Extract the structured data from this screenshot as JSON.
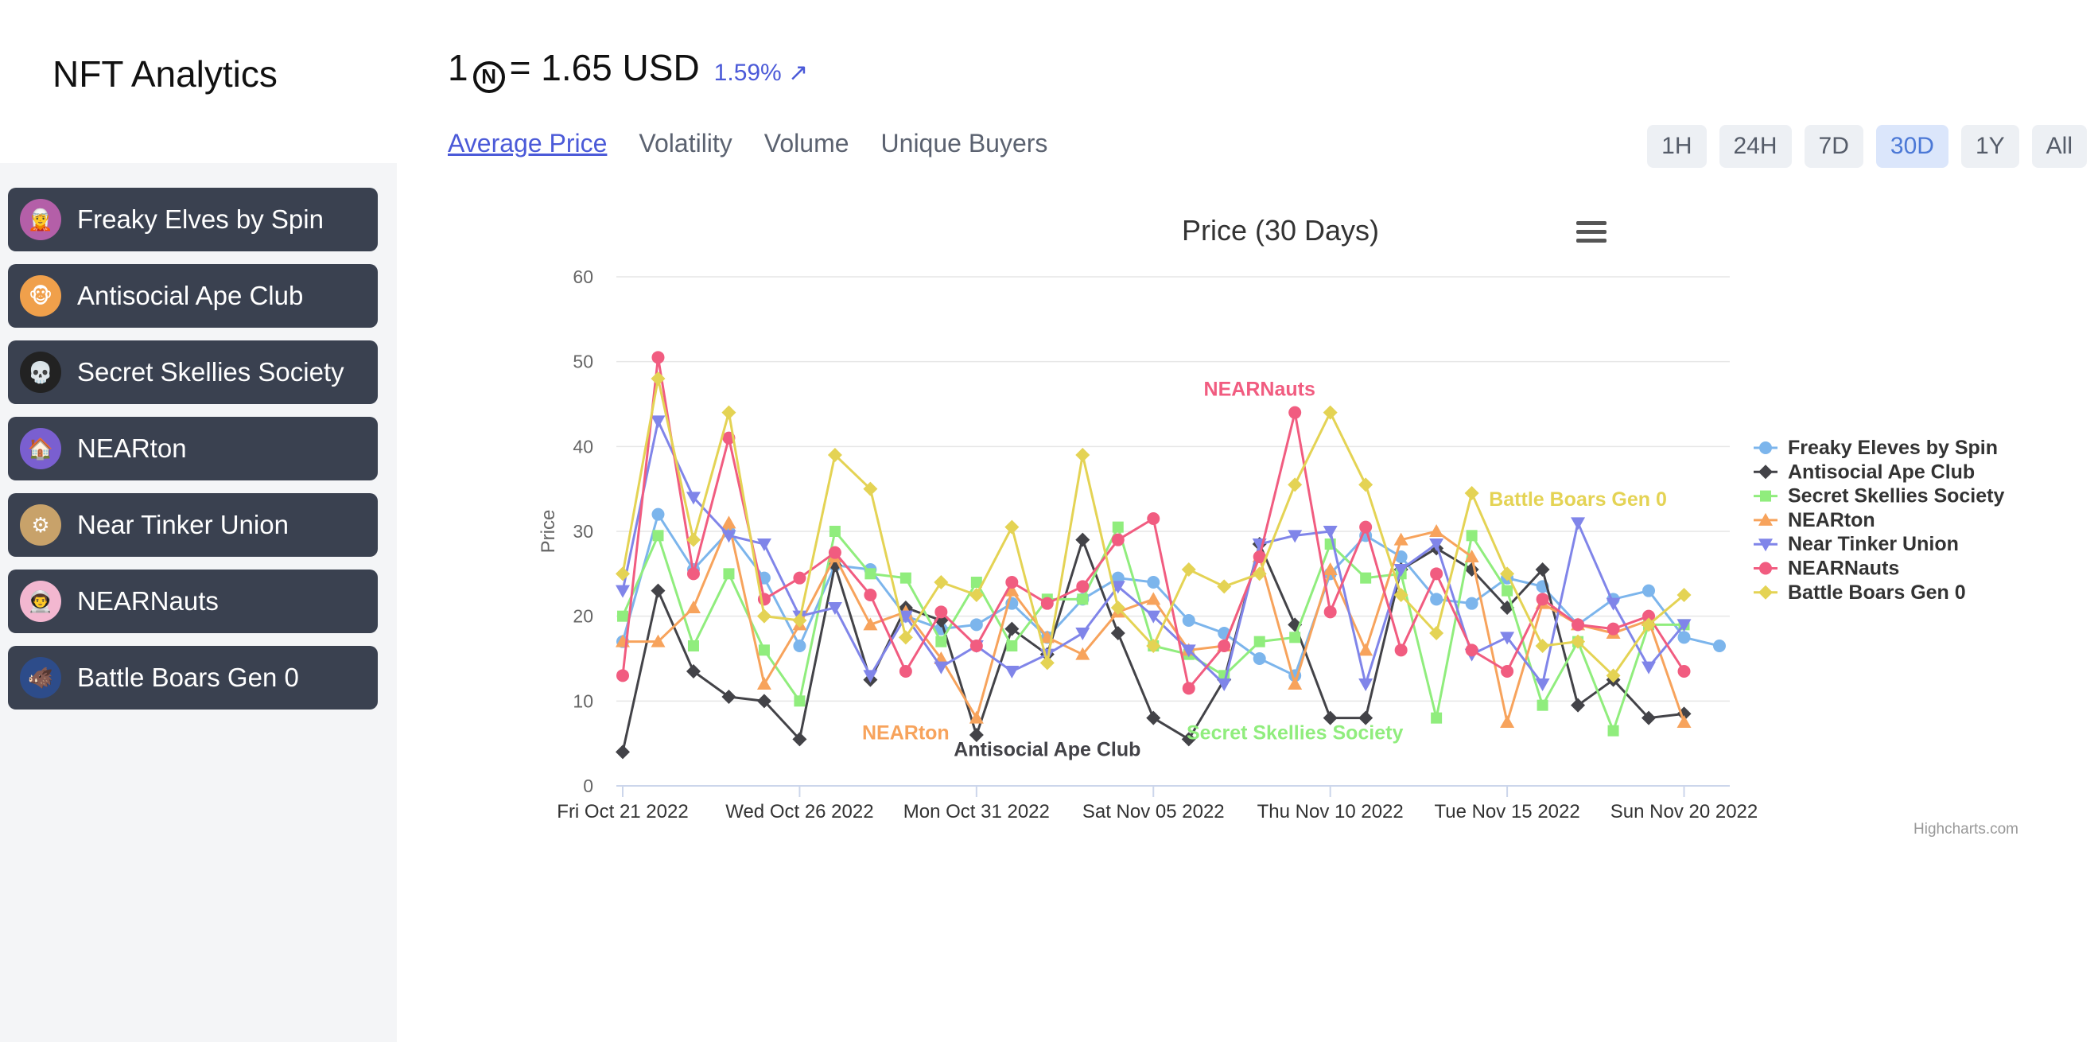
{
  "brand": "NFT Analytics",
  "sidebar": {
    "items": [
      {
        "label": "Freaky Elves by Spin",
        "icon": "elf-avatar-icon",
        "bg": "#b45fa8",
        "glyph": "🧝"
      },
      {
        "label": "Antisocial Ape Club",
        "icon": "ape-avatar-icon",
        "bg": "#f0a04b",
        "glyph": "🐵"
      },
      {
        "label": "Secret Skellies Society",
        "icon": "skull-avatar-icon",
        "bg": "#222222",
        "glyph": "💀"
      },
      {
        "label": "NEARton",
        "icon": "nearton-avatar-icon",
        "bg": "#7a5fd0",
        "glyph": "🏠"
      },
      {
        "label": "Near Tinker Union",
        "icon": "tinker-avatar-icon",
        "bg": "#c8a26a",
        "glyph": "⚙"
      },
      {
        "label": "NEARNauts",
        "icon": "nearnaut-avatar-icon",
        "bg": "#f3b7d0",
        "glyph": "👨‍🚀"
      },
      {
        "label": "Battle Boars Gen 0",
        "icon": "boar-avatar-icon",
        "bg": "#2d4c8a",
        "glyph": "🐗"
      }
    ]
  },
  "header": {
    "price_prefix": "1",
    "coin_glyph": "N",
    "price_value": "= 1.65 USD",
    "change": "1.59% ↗"
  },
  "tabs": [
    {
      "label": "Average Price",
      "active": true
    },
    {
      "label": "Volatility",
      "active": false
    },
    {
      "label": "Volume",
      "active": false
    },
    {
      "label": "Unique Buyers",
      "active": false
    }
  ],
  "ranges": [
    {
      "label": "1H",
      "active": false
    },
    {
      "label": "24H",
      "active": false
    },
    {
      "label": "7D",
      "active": false
    },
    {
      "label": "30D",
      "active": true
    },
    {
      "label": "1Y",
      "active": false
    },
    {
      "label": "All",
      "active": false
    }
  ],
  "chart_data": {
    "type": "line",
    "title": "Price (30 Days)",
    "ylabel": "Price",
    "ylim": [
      0,
      60
    ],
    "yticks": [
      0,
      10,
      20,
      30,
      40,
      50,
      60
    ],
    "x": [
      "2022-10-21",
      "2022-10-22",
      "2022-10-23",
      "2022-10-24",
      "2022-10-25",
      "2022-10-26",
      "2022-10-27",
      "2022-10-28",
      "2022-10-29",
      "2022-10-30",
      "2022-10-31",
      "2022-11-01",
      "2022-11-02",
      "2022-11-03",
      "2022-11-04",
      "2022-11-05",
      "2022-11-06",
      "2022-11-07",
      "2022-11-08",
      "2022-11-09",
      "2022-11-10",
      "2022-11-11",
      "2022-11-12",
      "2022-11-13",
      "2022-11-14",
      "2022-11-15",
      "2022-11-16",
      "2022-11-17",
      "2022-11-18",
      "2022-11-19",
      "2022-11-20",
      "2022-11-21"
    ],
    "xtick_labels": [
      {
        "date": "2022-10-21",
        "label": "Fri Oct 21 2022"
      },
      {
        "date": "2022-10-26",
        "label": "Wed Oct 26 2022"
      },
      {
        "date": "2022-10-31",
        "label": "Mon Oct 31 2022"
      },
      {
        "date": "2022-11-05",
        "label": "Sat Nov 05 2022"
      },
      {
        "date": "2022-11-10",
        "label": "Thu Nov 10 2022"
      },
      {
        "date": "2022-11-15",
        "label": "Tue Nov 15 2022"
      },
      {
        "date": "2022-11-20",
        "label": "Sun Nov 20 2022"
      }
    ],
    "legend_position": "right",
    "grid": true,
    "series": [
      {
        "name": "Freaky Eleves by Spin",
        "color": "#7cb5ec",
        "marker": "circle",
        "values": [
          17,
          32,
          25.5,
          30,
          24.5,
          16.5,
          26,
          25.5,
          20,
          18.5,
          19,
          21.5,
          17.5,
          22,
          24.5,
          24,
          19.5,
          18,
          15,
          13,
          25,
          29.5,
          27,
          22,
          21.5,
          24.5,
          23.5,
          19,
          22,
          23,
          17.5,
          16.5
        ]
      },
      {
        "name": "Antisocial Ape Club",
        "color": "#434348",
        "marker": "diamond",
        "values": [
          4,
          23,
          13.5,
          10.5,
          10,
          5.5,
          26,
          12.5,
          21,
          19.5,
          6,
          18.5,
          15.5,
          29,
          18,
          8,
          5.5,
          12.5,
          28.5,
          19,
          8,
          8,
          25.5,
          28,
          25.5,
          21,
          25.5,
          9.5,
          12.5,
          8,
          8.5,
          null
        ]
      },
      {
        "name": "Secret Skellies Society",
        "color": "#90ed7d",
        "marker": "square",
        "values": [
          20,
          29.5,
          16.5,
          25,
          16,
          10,
          30,
          25,
          24.5,
          17,
          24,
          16.5,
          22,
          22,
          30.5,
          16.5,
          15.5,
          13,
          17,
          17.5,
          28.5,
          24.5,
          25,
          8,
          29.5,
          23,
          9.5,
          17,
          6.5,
          19,
          19,
          null
        ]
      },
      {
        "name": "NEARton",
        "color": "#f7a35c",
        "marker": "triangle",
        "values": [
          17,
          17,
          21,
          31,
          12,
          19,
          27,
          19,
          20.5,
          15,
          8,
          23,
          17.5,
          15.5,
          20.5,
          22,
          16,
          16.5,
          27,
          12,
          25.5,
          16,
          29,
          30,
          27,
          7.5,
          21.5,
          19,
          18,
          19.5,
          7.5,
          null
        ]
      },
      {
        "name": "Near Tinker Union",
        "color": "#8085e9",
        "marker": "triangle-down",
        "values": [
          23,
          43,
          34,
          29.5,
          28.5,
          20,
          21,
          13,
          20,
          14,
          16.5,
          13.5,
          15.5,
          18,
          23.5,
          20,
          16,
          12,
          28.5,
          29.5,
          30,
          12,
          25.5,
          28.5,
          15.5,
          17.5,
          12,
          31,
          21.5,
          14,
          19,
          null
        ]
      },
      {
        "name": "NEARNauts",
        "color": "#f15c80",
        "marker": "circle",
        "values": [
          13,
          50.5,
          25,
          41,
          22,
          24.5,
          27.5,
          22.5,
          13.5,
          20.5,
          16.5,
          24,
          21.5,
          23.5,
          29,
          31.5,
          11.5,
          16.5,
          27,
          44,
          20.5,
          30.5,
          16,
          25,
          16,
          13.5,
          22,
          19,
          18.5,
          20,
          13.5,
          null
        ]
      },
      {
        "name": "Battle Boars Gen 0",
        "color": "#e4d354",
        "marker": "diamond",
        "values": [
          25,
          48,
          29,
          44,
          20,
          19.5,
          39,
          35,
          17.5,
          24,
          22.5,
          30.5,
          14.5,
          39,
          21,
          16.5,
          25.5,
          23.5,
          25,
          35.5,
          44,
          35.5,
          22.5,
          18,
          34.5,
          25,
          16.5,
          17,
          13,
          19,
          22.5,
          null
        ]
      }
    ],
    "annotations": [
      {
        "text": "NEARNauts",
        "series": 5,
        "date": "2022-11-08",
        "value": 46
      },
      {
        "text": "Battle Boars Gen 0",
        "series": 6,
        "date": "2022-11-17",
        "value": 33
      },
      {
        "text": "NEARton",
        "series": 3,
        "date": "2022-10-29",
        "value": 5.5
      },
      {
        "text": "Antisocial Ape Club",
        "series": 1,
        "date": "2022-11-02",
        "value": 3.5
      },
      {
        "text": "Secret Skellies Society",
        "series": 2,
        "date": "2022-11-09",
        "value": 5.5
      }
    ],
    "credits": "Highcharts.com"
  }
}
